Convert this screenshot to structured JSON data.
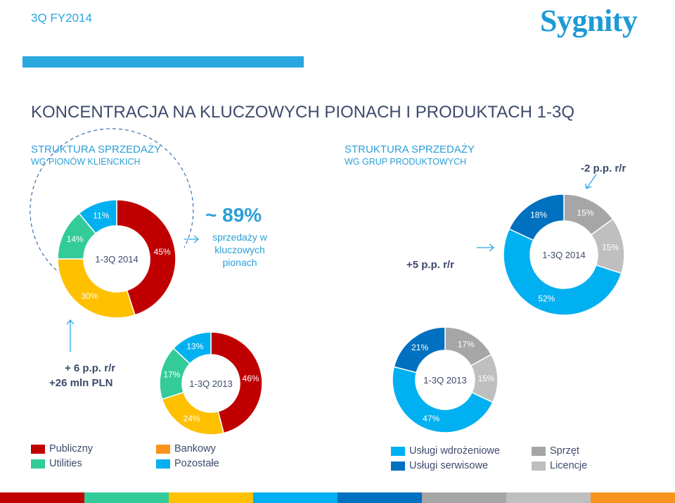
{
  "header": {
    "period_label": "3Q FY2014",
    "logo_text": "Sygnity"
  },
  "main_title": "KONCENTRACJA NA KLUCZOWYCH PIONACH I PRODUKTACH 1-3Q",
  "sections": {
    "left": {
      "title": "STRUKTURA SPRZEDAŻY",
      "subtitle": "WG PIONÓW KLIENCKICH"
    },
    "right": {
      "title": "STRUKTURA SPRZEDAŻY",
      "subtitle": "WG GRUP PRODUKTOWYCH"
    }
  },
  "callouts": {
    "big_percent": "~ 89%",
    "big_desc": "sprzedaży w kluczowych pionach",
    "left_change_1": "+ 6 p.p. r/r",
    "left_change_2": "+26 mln PLN",
    "right_change_top": "-2 p.p. r/r",
    "right_change_mid": "+5 p.p. r/r"
  },
  "colors": {
    "publiczny": "#c00000",
    "utilities": "#33cc99",
    "bankowy": "#ffc000",
    "pozostale": "#00b0f0",
    "uslugi_wdrozeniowe": "#00b0f0",
    "uslugi_serwisowe": "#0070c0",
    "sprzet": "#a6a6a6",
    "licencje": "#bfbfbf",
    "accent": "#29a8e0",
    "text": "#3d4a6b"
  },
  "chart_data": [
    {
      "type": "pie",
      "variant": "donut",
      "center_label": "1-3Q 2014",
      "categories": [
        "Publiczny",
        "Bankowy",
        "Utilities",
        "Pozostałe"
      ],
      "values": [
        45,
        30,
        14,
        11
      ],
      "labels": [
        "45%",
        "30%",
        "14%",
        "11%"
      ]
    },
    {
      "type": "pie",
      "variant": "donut",
      "center_label": "1-3Q 2013",
      "categories": [
        "Publiczny",
        "Bankowy",
        "Utilities",
        "Pozostałe"
      ],
      "values": [
        46,
        24,
        17,
        13
      ],
      "labels": [
        "46%",
        "24%",
        "17%",
        "13%"
      ]
    },
    {
      "type": "pie",
      "variant": "donut",
      "center_label": "1-3Q 2014",
      "categories": [
        "Sprzęt",
        "Licencje",
        "Usługi wdrożeniowe",
        "Usługi serwisowe"
      ],
      "values": [
        15,
        15,
        52,
        18
      ],
      "labels": [
        "15%",
        "15%",
        "52%",
        "18%"
      ]
    },
    {
      "type": "pie",
      "variant": "donut",
      "center_label": "1-3Q 2013",
      "categories": [
        "Sprzęt",
        "Licencje",
        "Usługi wdrożeniowe",
        "Usługi serwisowe"
      ],
      "values": [
        17,
        15,
        47,
        21
      ],
      "labels": [
        "17%",
        "15%",
        "47%",
        "21%"
      ]
    }
  ],
  "legends": {
    "left": [
      {
        "label": "Publiczny",
        "color": "#c00000"
      },
      {
        "label": "Utilities",
        "color": "#33cc99"
      },
      {
        "label": "Bankowy",
        "color": "#f7941d"
      },
      {
        "label": "Pozostałe",
        "color": "#00b0f0"
      }
    ],
    "right": [
      {
        "label": "Usługi wdrożeniowe",
        "color": "#00b0f0"
      },
      {
        "label": "Usługi serwisowe",
        "color": "#0070c0"
      },
      {
        "label": "Sprzęt",
        "color": "#a6a6a6"
      },
      {
        "label": "Licencje",
        "color": "#bfbfbf"
      }
    ]
  },
  "bottom_bar_colors": [
    "#c00000",
    "#33cc99",
    "#ffc000",
    "#00b0f0",
    "#0070c0",
    "#a6a6a6",
    "#bfbfbf",
    "#f7941d"
  ]
}
